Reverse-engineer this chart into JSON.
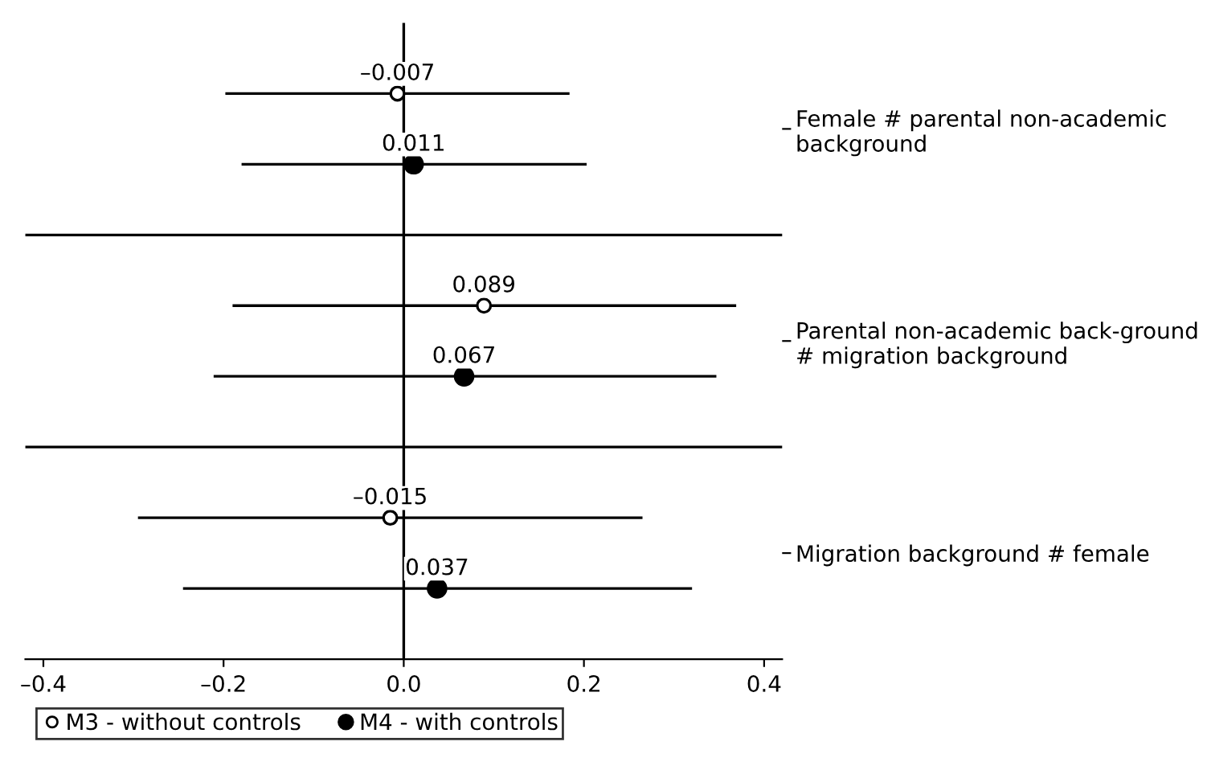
{
  "chart_data": {
    "type": "scatter",
    "orientation": "horizontal",
    "categories": [
      "Female # parental non-academic background",
      "Parental non-academic back-ground # migration background",
      "Migration background # female"
    ],
    "series": [
      {
        "name": "M3 - without controls",
        "color": "#ffffff",
        "values": [
          -0.007,
          0.089,
          -0.015
        ],
        "value_labels": [
          "–0.007",
          "0.089",
          "–0.015"
        ],
        "errors": [
          [
            -0.198,
            0.184
          ],
          [
            -0.19,
            0.369
          ],
          [
            -0.295,
            0.265
          ]
        ]
      },
      {
        "name": "M4 - with controls",
        "color": "#000000",
        "values": [
          0.011,
          0.067,
          0.037
        ],
        "value_labels": [
          "0.011",
          "0.067",
          "0.037"
        ],
        "errors": [
          [
            -0.18,
            0.203
          ],
          [
            -0.211,
            0.347
          ],
          [
            -0.245,
            0.32
          ]
        ]
      }
    ],
    "xlim": [
      -0.42,
      0.42
    ],
    "xticks": [
      {
        "value": -0.4,
        "label": "–0.4"
      },
      {
        "value": -0.2,
        "label": "–0.2"
      },
      {
        "value": 0.0,
        "label": "0.0"
      },
      {
        "value": 0.2,
        "label": "0.2"
      },
      {
        "value": 0.4,
        "label": "0.4"
      }
    ],
    "ref_lines": [
      {
        "axis": "x",
        "value": 0
      }
    ],
    "marker": "circle",
    "grid": false,
    "legend": "bottom left"
  }
}
